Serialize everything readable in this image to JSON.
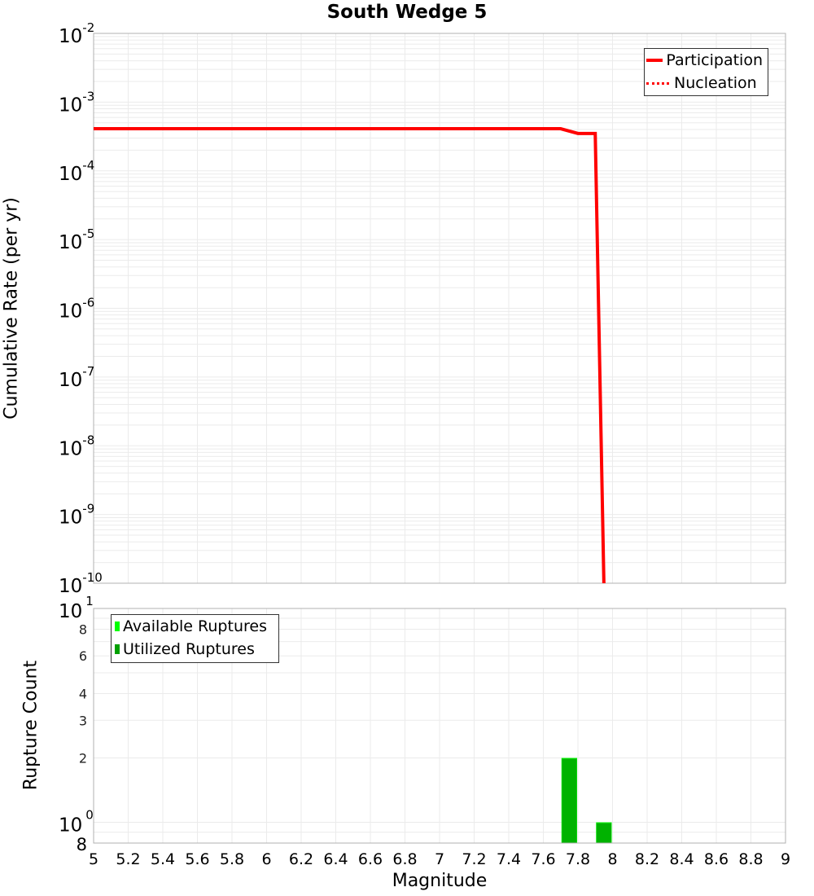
{
  "title": "South Wedge 5",
  "chart_data": [
    {
      "type": "line",
      "title": "South Wedge 5",
      "xlabel": "Magnitude",
      "ylabel": "Cumulative Rate (per yr)",
      "xlim": [
        5,
        9
      ],
      "ylim": [
        1e-10,
        0.01
      ],
      "yscale": "log",
      "grid": true,
      "legend_position": "top-right",
      "x_ticks": [
        "5",
        "5.2",
        "5.4",
        "5.6",
        "5.8",
        "6",
        "6.2",
        "6.4",
        "6.6",
        "6.8",
        "7",
        "7.2",
        "7.4",
        "7.6",
        "7.8",
        "8",
        "8.2",
        "8.4",
        "8.6",
        "8.8",
        "9"
      ],
      "y_ticks": [
        "10^-10",
        "10^-9",
        "10^-8",
        "10^-7",
        "10^-6",
        "10^-5",
        "10^-4",
        "10^-3",
        "10^-2"
      ],
      "series": [
        {
          "name": "Participation",
          "style": "solid",
          "color": "#ff0000",
          "x": [
            5.0,
            7.7,
            7.8,
            7.9,
            7.95
          ],
          "y": [
            0.00041,
            0.00041,
            0.00035,
            0.00035,
            1e-10
          ]
        },
        {
          "name": "Nucleation",
          "style": "dotted",
          "color": "#ff0000",
          "x": [
            5.0,
            7.7,
            7.8,
            7.9,
            7.95
          ],
          "y": [
            0.00041,
            0.00041,
            0.00035,
            0.00035,
            1e-10
          ]
        }
      ]
    },
    {
      "type": "bar",
      "xlabel": "Magnitude",
      "ylabel": "Rupture Count",
      "xlim": [
        5,
        9
      ],
      "ylim": [
        0.8,
        10
      ],
      "yscale": "log",
      "grid": true,
      "legend_position": "top-left",
      "y_ticks": [
        "8",
        "10^0",
        "2",
        "3",
        "4",
        "6",
        "8",
        "10^1"
      ],
      "bin_width": 0.1,
      "series": [
        {
          "name": "Available Ruptures",
          "color": "#00ff00",
          "bins": [
            [
              7.7,
              7.8
            ],
            [
              7.9,
              8.0
            ]
          ],
          "values": [
            2,
            1
          ]
        },
        {
          "name": "Utilized Ruptures",
          "color": "#00b200",
          "bins": [
            [
              7.7,
              7.8
            ],
            [
              7.9,
              8.0
            ]
          ],
          "values": [
            2,
            1
          ]
        }
      ]
    }
  ],
  "top_chart": {
    "ylabel": "Cumulative Rate (per yr)",
    "ytick_labels": [
      {
        "base": "10",
        "exp": "-2"
      },
      {
        "base": "10",
        "exp": "-3"
      },
      {
        "base": "10",
        "exp": "-4"
      },
      {
        "base": "10",
        "exp": "-5"
      },
      {
        "base": "10",
        "exp": "-6"
      },
      {
        "base": "10",
        "exp": "-7"
      },
      {
        "base": "10",
        "exp": "-8"
      },
      {
        "base": "10",
        "exp": "-9"
      },
      {
        "base": "10",
        "exp": "-10"
      }
    ],
    "legend": [
      {
        "label": "Participation",
        "style": "solid"
      },
      {
        "label": "Nucleation",
        "style": "dotted"
      }
    ]
  },
  "bottom_chart": {
    "ylabel": "Rupture Count",
    "ytick_labels": {
      "top": {
        "base": "10",
        "exp": "1"
      },
      "minor": [
        "8",
        "6",
        "4",
        "3",
        "2"
      ],
      "unit": {
        "base": "10",
        "exp": "0"
      },
      "bottom": "8"
    },
    "legend": [
      {
        "label": "Available Ruptures"
      },
      {
        "label": "Utilized Ruptures"
      }
    ]
  },
  "xaxis": {
    "label": "Magnitude",
    "ticks": [
      "5",
      "5.2",
      "5.4",
      "5.6",
      "5.8",
      "6",
      "6.2",
      "6.4",
      "6.6",
      "6.8",
      "7",
      "7.2",
      "7.4",
      "7.6",
      "7.8",
      "8",
      "8.2",
      "8.4",
      "8.6",
      "8.8",
      "9"
    ]
  }
}
